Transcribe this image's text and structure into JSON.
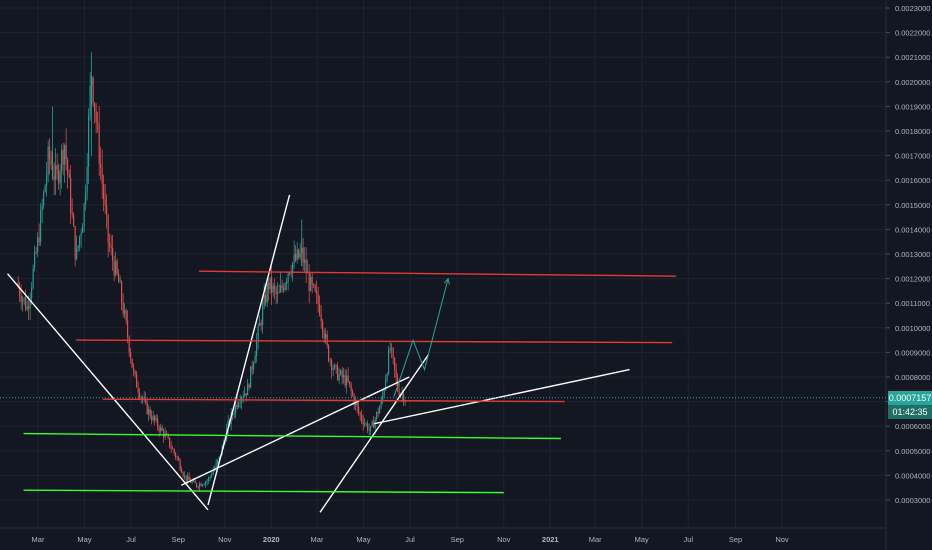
{
  "chart_data": {
    "type": "candlestick",
    "x_axis_labels": [
      "Mar",
      "May",
      "Jul",
      "Sep",
      "Nov",
      "2020",
      "Mar",
      "May",
      "Jul",
      "Sep",
      "Nov",
      "2021",
      "Mar",
      "May",
      "Jul",
      "Sep",
      "Nov"
    ],
    "y_axis_labels": [
      "0.0023000",
      "0.0022000",
      "0.0021000",
      "0.0020000",
      "0.0019000",
      "0.0018000",
      "0.0017000",
      "0.0016000",
      "0.0015000",
      "0.0014000",
      "0.0013000",
      "0.0012000",
      "0.0011000",
      "0.0010000",
      "0.0009000",
      "0.0008000",
      "0.0007000",
      "0.0006000",
      "0.0005000",
      "0.0004000",
      "0.0003000"
    ],
    "ylim": [
      0.00026,
      0.00233
    ],
    "last_price": "0.0007157",
    "countdown": "01:42:35",
    "grid": true,
    "price_path": [
      [
        "2019-02-01",
        0.00118
      ],
      [
        "2019-02-15",
        0.00108
      ],
      [
        "2019-03-01",
        0.00135
      ],
      [
        "2019-03-15",
        0.0017
      ],
      [
        "2019-03-25",
        0.0016
      ],
      [
        "2019-04-05",
        0.00175
      ],
      [
        "2019-04-20",
        0.00128
      ],
      [
        "2019-05-01",
        0.0015
      ],
      [
        "2019-05-10",
        0.00205
      ],
      [
        "2019-05-20",
        0.00172
      ],
      [
        "2019-06-01",
        0.00135
      ],
      [
        "2019-06-15",
        0.00118
      ],
      [
        "2019-06-25",
        0.001
      ],
      [
        "2019-07-05",
        0.0008
      ],
      [
        "2019-07-20",
        0.00068
      ],
      [
        "2019-08-01",
        0.00062
      ],
      [
        "2019-08-15",
        0.00056
      ],
      [
        "2019-09-01",
        0.00046
      ],
      [
        "2019-09-10",
        0.00039
      ],
      [
        "2019-09-25",
        0.00036
      ],
      [
        "2019-10-10",
        0.00038
      ],
      [
        "2019-10-25",
        0.00047
      ],
      [
        "2019-11-05",
        0.0006
      ],
      [
        "2019-11-20",
        0.00072
      ],
      [
        "2019-12-01",
        0.00075
      ],
      [
        "2019-12-15",
        0.00098
      ],
      [
        "2019-12-28",
        0.00118
      ],
      [
        "2020-01-10",
        0.00112
      ],
      [
        "2020-01-25",
        0.00125
      ],
      [
        "2020-02-10",
        0.0013
      ],
      [
        "2020-02-20",
        0.00118
      ],
      [
        "2020-03-05",
        0.00108
      ],
      [
        "2020-03-15",
        0.0009
      ],
      [
        "2020-03-25",
        0.00082
      ],
      [
        "2020-04-10",
        0.00078
      ],
      [
        "2020-04-25",
        0.00065
      ],
      [
        "2020-05-10",
        0.00058
      ],
      [
        "2020-05-25",
        0.0007
      ],
      [
        "2020-06-05",
        0.00092
      ],
      [
        "2020-06-15",
        0.00075
      ],
      [
        "2020-06-25",
        0.0007157
      ]
    ],
    "drawings": [
      {
        "kind": "trendline",
        "color": "#ffffff",
        "from": [
          "2019-01-20",
          0.00122
        ],
        "to": [
          "2019-10-10",
          0.00026
        ]
      },
      {
        "kind": "trendline",
        "color": "#ffffff",
        "from": [
          "2019-10-10",
          0.00028
        ],
        "to": [
          "2020-01-25",
          0.00154
        ]
      },
      {
        "kind": "trendline",
        "color": "#ffffff",
        "from": [
          "2019-09-05",
          0.00036
        ],
        "to": [
          "2020-06-30",
          0.0008
        ]
      },
      {
        "kind": "trendline",
        "color": "#ffffff",
        "from": [
          "2020-03-05",
          0.00025
        ],
        "to": [
          "2020-07-25",
          0.00089
        ]
      },
      {
        "kind": "trendline",
        "color": "#ffffff",
        "from": [
          "2020-05-15",
          0.00061
        ],
        "to": [
          "2021-04-15",
          0.00083
        ]
      },
      {
        "kind": "horizontal",
        "color": "#e53935",
        "from": [
          "2019-09-28",
          0.00123
        ],
        "to": [
          "2021-06-15",
          0.00121
        ]
      },
      {
        "kind": "horizontal",
        "color": "#e53935",
        "from": [
          "2019-04-20",
          0.00095
        ],
        "to": [
          "2021-06-10",
          0.00094
        ]
      },
      {
        "kind": "horizontal",
        "color": "#e53935",
        "from": [
          "2019-05-25",
          0.00071
        ],
        "to": [
          "2021-01-20",
          0.0007
        ]
      },
      {
        "kind": "horizontal",
        "color": "#33ff33",
        "from": [
          "2019-02-10",
          0.00057
        ],
        "to": [
          "2021-01-15",
          0.00055
        ]
      },
      {
        "kind": "horizontal",
        "color": "#33ff33",
        "from": [
          "2019-02-10",
          0.00034
        ],
        "to": [
          "2020-11-01",
          0.00033
        ]
      },
      {
        "kind": "projection",
        "color": "#26a69a",
        "points": [
          [
            "2020-06-10",
            0.00072
          ],
          [
            "2020-07-05",
            0.00095
          ],
          [
            "2020-07-20",
            0.00083
          ],
          [
            "2020-08-20",
            0.0012
          ]
        ]
      }
    ]
  }
}
